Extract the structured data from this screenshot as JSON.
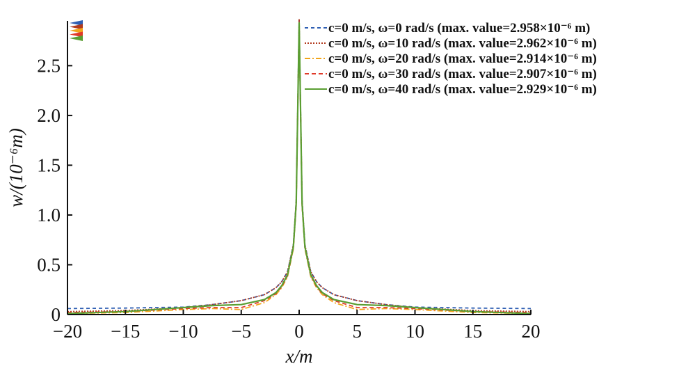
{
  "chart_data": {
    "type": "line",
    "title": "",
    "xlabel": "x/m",
    "ylabel": "w/(10⁻⁶m)",
    "xlim": [
      -20,
      20
    ],
    "ylim": [
      0,
      2.95
    ],
    "xticks": [
      -20,
      -15,
      -10,
      -5,
      0,
      5,
      10,
      15,
      20
    ],
    "xtick_labels": [
      "−20",
      "−15",
      "−10",
      "−5",
      "0",
      "5",
      "10",
      "15",
      "20"
    ],
    "yticks": [
      0,
      0.5,
      1.0,
      1.5,
      2.0,
      2.5
    ],
    "ytick_labels": [
      "0",
      "0.5",
      "1.0",
      "1.5",
      "2.0",
      "2.5"
    ],
    "grid": false,
    "legend_position": "top-right",
    "x": [
      -20,
      -15,
      -10,
      -7.5,
      -5,
      -3,
      -2,
      -1.5,
      -1,
      -0.5,
      -0.25,
      0,
      0.25,
      0.5,
      1,
      1.5,
      2,
      3,
      5,
      7.5,
      10,
      15,
      20
    ],
    "series": [
      {
        "name": "c=0 m/s, ω=0 rad/s (max. value=2.958×10⁻⁶ m)",
        "color": "#2f5fb3",
        "dash": "5,4",
        "values": [
          0.06,
          0.065,
          0.075,
          0.1,
          0.14,
          0.2,
          0.27,
          0.33,
          0.43,
          0.7,
          1.15,
          2.958,
          1.15,
          0.7,
          0.43,
          0.33,
          0.27,
          0.2,
          0.14,
          0.1,
          0.075,
          0.065,
          0.06
        ]
      },
      {
        "name": "c=0 m/s, ω=10 rad/s (max. value=2.962×10⁻⁶ m)",
        "color": "#b23a1e",
        "dash": "2,2",
        "values": [
          0.03,
          0.04,
          0.07,
          0.1,
          0.14,
          0.2,
          0.27,
          0.33,
          0.43,
          0.7,
          1.15,
          2.962,
          1.15,
          0.7,
          0.43,
          0.33,
          0.27,
          0.2,
          0.14,
          0.1,
          0.07,
          0.04,
          0.03
        ]
      },
      {
        "name": "c=0 m/s, ω=20 rad/s (max. value=2.914×10⁻⁶ m)",
        "color": "#f2a51a",
        "dash": "8,3,2,3",
        "values": [
          0.01,
          0.02,
          0.05,
          0.06,
          0.05,
          0.12,
          0.2,
          0.27,
          0.38,
          0.66,
          1.1,
          2.914,
          1.1,
          0.66,
          0.38,
          0.27,
          0.2,
          0.12,
          0.05,
          0.06,
          0.05,
          0.02,
          0.01
        ]
      },
      {
        "name": "c=0 m/s, ω=30 rad/s (max. value=2.907×10⁻⁶ m)",
        "color": "#e03a2a",
        "dash": "6,4",
        "values": [
          0.02,
          0.03,
          0.06,
          0.07,
          0.07,
          0.14,
          0.21,
          0.28,
          0.39,
          0.67,
          1.1,
          2.907,
          1.1,
          0.67,
          0.39,
          0.28,
          0.21,
          0.14,
          0.07,
          0.07,
          0.06,
          0.03,
          0.02
        ]
      },
      {
        "name": "c=0 m/s, ω=40 rad/s (max. value=2.929×10⁻⁶ m)",
        "color": "#5a9e32",
        "dash": "",
        "values": [
          0.01,
          0.03,
          0.07,
          0.09,
          0.1,
          0.15,
          0.22,
          0.29,
          0.4,
          0.68,
          1.12,
          2.929,
          1.12,
          0.68,
          0.4,
          0.29,
          0.22,
          0.15,
          0.1,
          0.09,
          0.07,
          0.03,
          0.01
        ]
      }
    ]
  }
}
